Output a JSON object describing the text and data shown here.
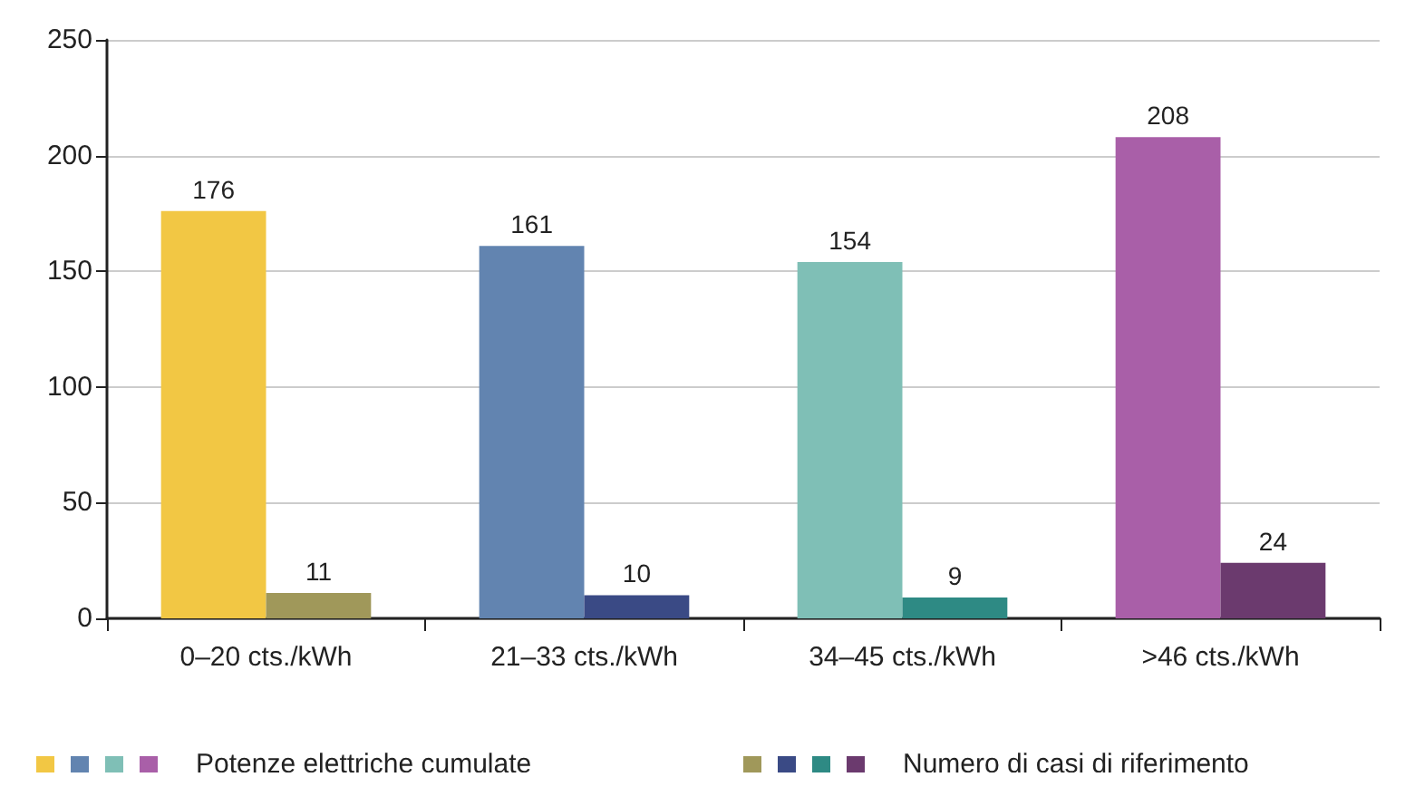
{
  "chart_data": {
    "type": "bar",
    "categories": [
      "0–20 cts./kWh",
      "21–33 cts./kWh",
      "34–45 cts./kWh",
      ">46 cts./kWh"
    ],
    "series": [
      {
        "name": "Potenze elettriche cumulate",
        "colors": [
          "#f2c744",
          "#6284b0",
          "#7fbfb6",
          "#a95fa8"
        ],
        "values": [
          176,
          161,
          154,
          208
        ]
      },
      {
        "name": "Numero di casi di riferimento",
        "colors": [
          "#a0985a",
          "#3a4a85",
          "#2e8a84",
          "#6b3a6e"
        ],
        "values": [
          11,
          10,
          9,
          24
        ]
      }
    ],
    "ylim": [
      0,
      250
    ],
    "yticks": [
      0,
      50,
      100,
      150,
      200,
      250
    ],
    "grid": "y",
    "data_labels": true,
    "legend": "bottom"
  }
}
